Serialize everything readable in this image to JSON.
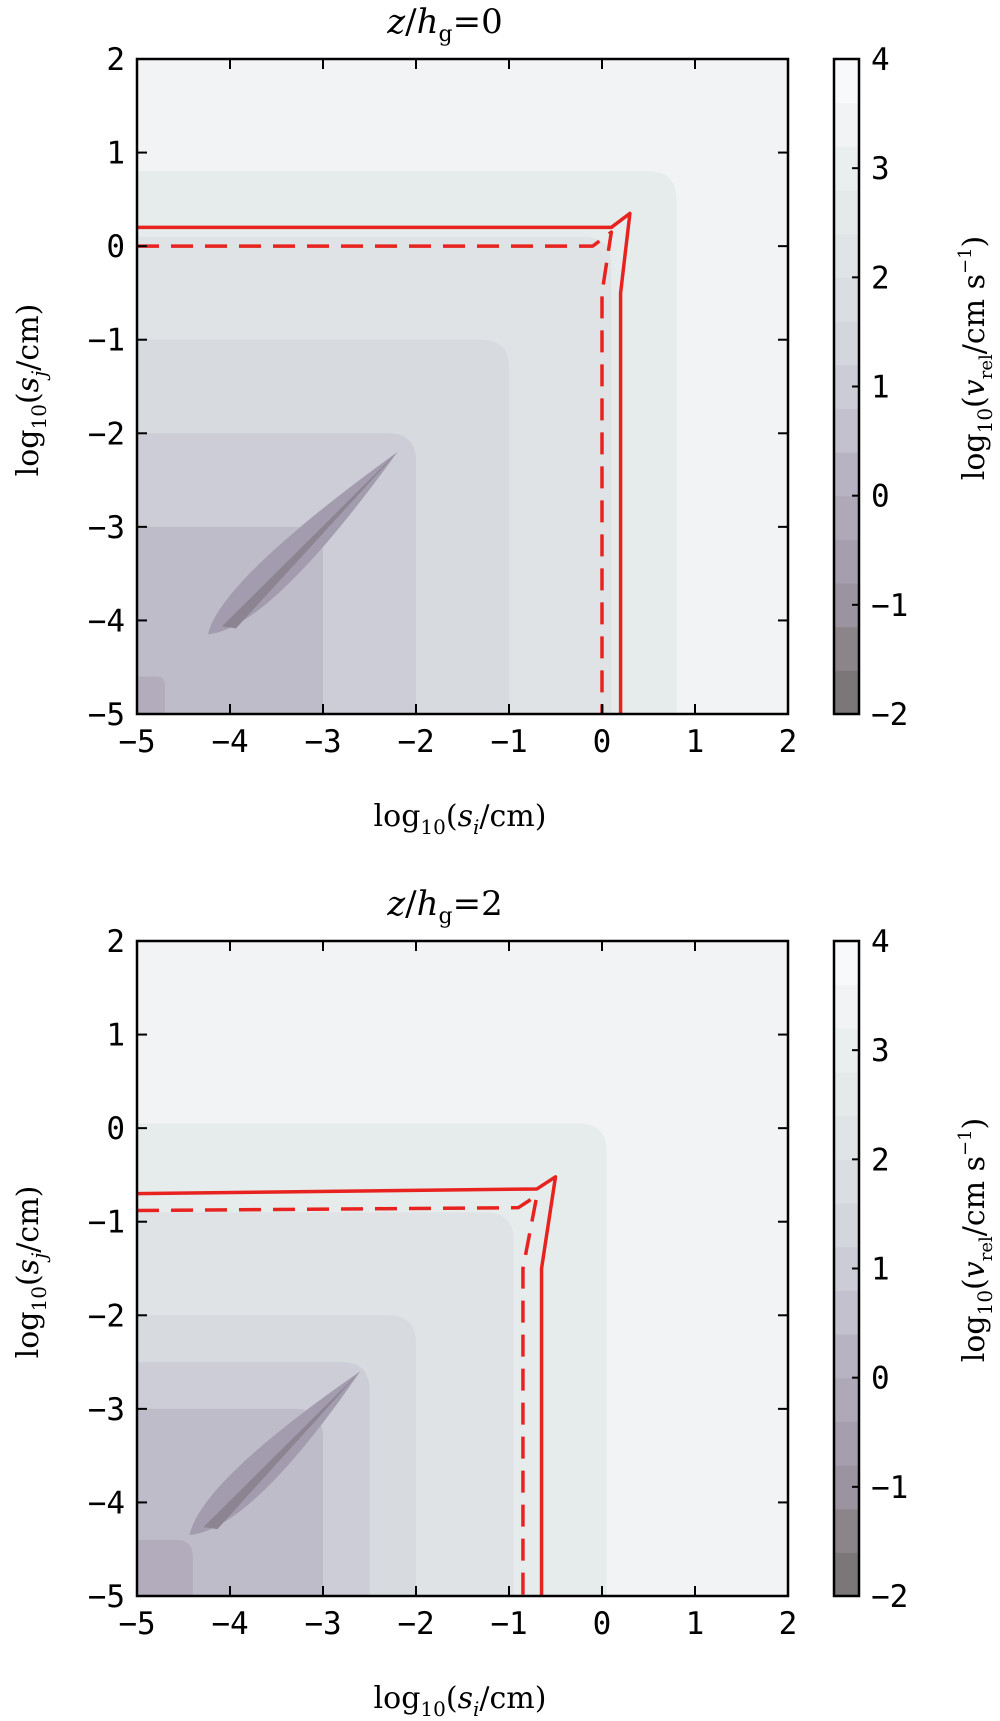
{
  "chart_data": [
    {
      "type": "contour",
      "title": "z/h_g=0",
      "title_parts": {
        "z": "z",
        "slash": "/",
        "h": "h",
        "g": "g",
        "eq": "=0"
      },
      "xlabel": "log10(si/cm)",
      "xlabel_parts": {
        "log": "log",
        "sub": "10",
        "open": "(",
        "s": "s",
        "i": "i",
        "rest": "/cm)"
      },
      "ylabel": "log10(sj/cm)",
      "ylabel_parts": {
        "log": "log",
        "sub": "10",
        "open": "(",
        "s": "s",
        "j": "j",
        "rest": "/cm)"
      },
      "xlim": [
        -5,
        2
      ],
      "ylim": [
        -5,
        2
      ],
      "xticks": [
        "−5",
        "−4",
        "−3",
        "−2",
        "−1",
        "0",
        "1",
        "2"
      ],
      "yticks": [
        "−5",
        "−4",
        "−3",
        "−2",
        "−1",
        "0",
        "1",
        "2"
      ],
      "contour_levels": [
        {
          "level": 2.75,
          "color": "#e6ecec",
          "corner": [
            0.8,
            0.8
          ]
        },
        {
          "level": 2.25,
          "color": "#dfe3e6",
          "corner": [
            0.1,
            0.1
          ]
        },
        {
          "level": 1.75,
          "color": "#d7dbe0",
          "corner": [
            -1.0,
            -1.0
          ]
        },
        {
          "level": 1.25,
          "color": "#cccdd6",
          "corner": [
            -2.0,
            -2.0
          ]
        },
        {
          "level": 0.75,
          "color": "#bfbcc9",
          "corner": [
            -3.0,
            -3.0
          ]
        },
        {
          "level": 0.25,
          "color": "#b2acbc",
          "corner": [
            -4.7,
            -4.6
          ]
        }
      ],
      "diagonal_valley": {
        "from": [
          -4.0,
          -4.0
        ],
        "to": [
          -2.2,
          -2.2
        ]
      },
      "solid_line": {
        "name": "solid",
        "color": "#e8231f",
        "x": [
          -5,
          0.1,
          0.3,
          0.2,
          0.2
        ],
        "y": [
          0.2,
          0.2,
          0.35,
          -0.5,
          -5
        ]
      },
      "dashed_line": {
        "name": "dashed",
        "color": "#e8231f",
        "x": [
          -5,
          -0.1,
          0.1,
          0.0,
          0.0
        ],
        "y": [
          0.0,
          0.0,
          0.15,
          -0.5,
          -5
        ]
      }
    },
    {
      "type": "contour",
      "title": "z/h_g=2",
      "title_parts": {
        "z": "z",
        "slash": "/",
        "h": "h",
        "g": "g",
        "eq": "=2"
      },
      "xlabel": "log10(si/cm)",
      "xlabel_parts": {
        "log": "log",
        "sub": "10",
        "open": "(",
        "s": "s",
        "i": "i",
        "rest": "/cm)"
      },
      "ylabel": "log10(sj/cm)",
      "ylabel_parts": {
        "log": "log",
        "sub": "10",
        "open": "(",
        "s": "s",
        "j": "j",
        "rest": "/cm)"
      },
      "xlim": [
        -5,
        2
      ],
      "ylim": [
        -5,
        2
      ],
      "xticks": [
        "−5",
        "−4",
        "−3",
        "−2",
        "−1",
        "0",
        "1",
        "2"
      ],
      "yticks": [
        "−5",
        "−4",
        "−3",
        "−2",
        "−1",
        "0",
        "1",
        "2"
      ],
      "contour_levels": [
        {
          "level": 2.75,
          "color": "#e6ecec",
          "corner": [
            0.05,
            0.05
          ]
        },
        {
          "level": 2.25,
          "color": "#dfe3e6",
          "corner": [
            -0.95,
            -0.9
          ]
        },
        {
          "level": 1.75,
          "color": "#d7dbe0",
          "corner": [
            -2.0,
            -2.0
          ]
        },
        {
          "level": 1.25,
          "color": "#cccdd6",
          "corner": [
            -2.5,
            -2.5
          ]
        },
        {
          "level": 0.75,
          "color": "#bfbcc9",
          "corner": [
            -3.0,
            -3.0
          ]
        },
        {
          "level": 0.25,
          "color": "#b2acbc",
          "corner": [
            -4.4,
            -4.4
          ]
        }
      ],
      "diagonal_valley": {
        "from": [
          -4.2,
          -4.2
        ],
        "to": [
          -2.6,
          -2.6
        ]
      },
      "solid_line": {
        "name": "solid",
        "color": "#e8231f",
        "x": [
          -5,
          -0.7,
          -0.5,
          -0.65,
          -0.65
        ],
        "y": [
          -0.7,
          -0.65,
          -0.52,
          -1.5,
          -5
        ]
      },
      "dashed_line": {
        "name": "dashed",
        "color": "#e8231f",
        "x": [
          -5,
          -0.9,
          -0.7,
          -0.85,
          -0.85
        ],
        "y": [
          -0.88,
          -0.85,
          -0.72,
          -1.5,
          -5
        ]
      }
    }
  ],
  "colorbar": {
    "label_parts": {
      "log": "log",
      "sub": "10",
      "open": "(",
      "v": "v",
      "rel": "rel",
      "rest": "/cm s",
      "sup": "−1",
      "close": ")"
    },
    "range": [
      -2,
      4
    ],
    "ticks": [
      "−2",
      "−1",
      "0",
      "1",
      "2",
      "3",
      "4"
    ],
    "bands": [
      "#7b7778",
      "#8b8489",
      "#9c93a0",
      "#a59eae",
      "#aea8b7",
      "#b8b3c2",
      "#c3c1cd",
      "#ccccd6",
      "#d4d6dd",
      "#dadee3",
      "#dfe4e6",
      "#e4e9ea",
      "#e9eeee",
      "#f1f3f4",
      "#f8f9fa"
    ]
  }
}
